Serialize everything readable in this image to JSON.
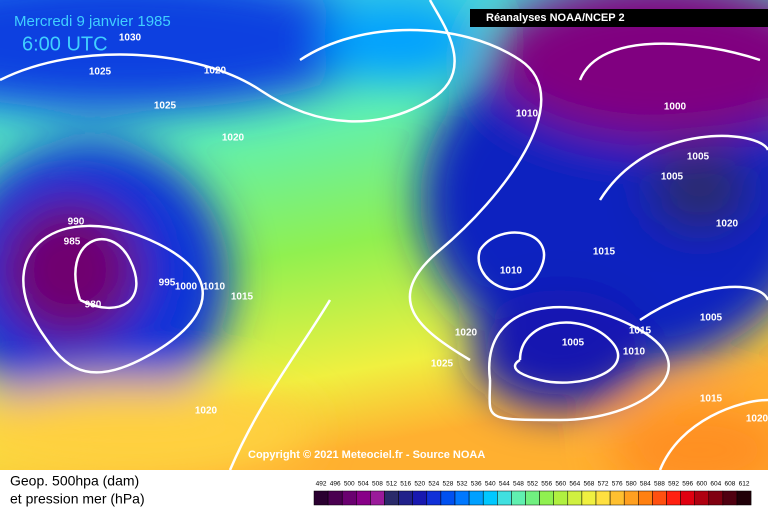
{
  "header": {
    "date": "Mercredi 9 janvier 1985",
    "time": "6:00 UTC",
    "source": "Réanalyses NOAA/NCEP 2"
  },
  "map": {
    "isobar_labels": [
      "1030",
      "1025",
      "1020",
      "1025",
      "1020",
      "1010",
      "1000",
      "1005",
      "1005",
      "1020",
      "990",
      "985",
      "980",
      "995",
      "1000",
      "1010",
      "1015",
      "1015",
      "1010",
      "1020",
      "1025",
      "1005",
      "1015",
      "1010",
      "1005",
      "1015",
      "1020",
      "1020"
    ],
    "copyright": "Copyright © 2021 Meteociel.fr - Source NOAA"
  },
  "legend": {
    "line1": "Geop. 500hpa (dam)",
    "line2": "et pression mer (hPa)",
    "labels": [
      "492",
      "496",
      "500",
      "504",
      "508",
      "512",
      "516",
      "520",
      "524",
      "528",
      "532",
      "536",
      "540",
      "544",
      "548",
      "552",
      "556",
      "560",
      "564",
      "568",
      "572",
      "576",
      "580",
      "584",
      "588",
      "592",
      "596",
      "600",
      "604",
      "608",
      "612"
    ],
    "colors": [
      "#2a0030",
      "#4a0050",
      "#6a0070",
      "#880088",
      "#9a1a9a",
      "#2a2a6a",
      "#20208a",
      "#1818b0",
      "#1030d8",
      "#0050f0",
      "#0078ff",
      "#00a0ff",
      "#00c8ff",
      "#40e0e0",
      "#60f0b0",
      "#70f080",
      "#90f050",
      "#b0f040",
      "#d0f040",
      "#f0f040",
      "#ffe040",
      "#ffc030",
      "#ffa020",
      "#ff8010",
      "#ff5010",
      "#ff2010",
      "#e00010",
      "#b00010",
      "#800010",
      "#500010",
      "#200008"
    ]
  }
}
